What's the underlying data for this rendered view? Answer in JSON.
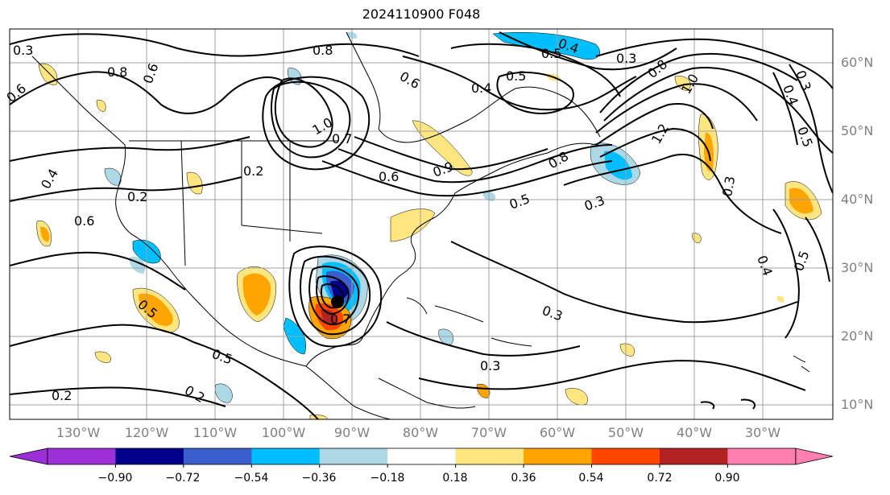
{
  "title": "2024110900 F048",
  "map_extent": {
    "lon_min": -137,
    "lon_max": -15,
    "lat_min": 8,
    "lat_max": 65
  },
  "lat_labels": [
    "60°N",
    "50°N",
    "40°N",
    "30°N",
    "20°N",
    "10°N"
  ],
  "lon_labels": [
    "130°W",
    "120°W",
    "110°W",
    "100°W",
    "90°W",
    "80°W",
    "70°W",
    "60°W",
    "50°W",
    "40°W",
    "30°W"
  ],
  "colorbar": {
    "labels": [
      "−0.90",
      "−0.72",
      "−0.54",
      "−0.36",
      "−0.18",
      "0.18",
      "0.36",
      "0.54",
      "0.72",
      "0.90"
    ],
    "colors": [
      "#9b30d9",
      "#00008b",
      "#3a5fcd",
      "#00bfff",
      "#add8e6",
      "#ffffff",
      "#ffe680",
      "#ffa500",
      "#ff4500",
      "#b22222",
      "#ff80b0"
    ]
  },
  "contour_labels": [
    "0.8",
    "0.4",
    "0.5",
    "0.3",
    "0.6",
    "0.8",
    "0.6",
    "0.4",
    "0.5",
    "0.8",
    "0.3",
    "0.4",
    "0.6",
    "0.5",
    "1.0",
    "0.7",
    "0.6",
    "0.9",
    "0.8",
    "1.0",
    "1.2",
    "0.2",
    "0.2",
    "0.4",
    "0.6",
    "0.3",
    "0.5",
    "0.3",
    "0.5",
    "0.3",
    "0.3",
    "0.5",
    "0.4",
    "0.5",
    "0.2",
    "0.2",
    "0.3",
    "0.7"
  ],
  "icons": {
    "storm_center": "storm-center-marker-icon"
  }
}
